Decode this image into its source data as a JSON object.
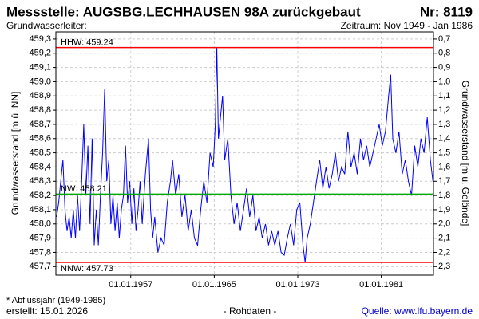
{
  "chart_data": {
    "type": "line",
    "title": "Messstelle: AUGSBG.LECHHAUSEN 98A zurückgebaut",
    "number": "Nr: 8119",
    "subtitle_left": "Grundwasserleiter:",
    "subtitle_right": "Zeitraum: Nov 1949 - Jan 1986",
    "y_label": "Grundwasserstand [m ü. NN]",
    "y2_label": "Grundwasserstand [m u. Gelände]",
    "footnote": "* Abflussjahr (1949-1985)",
    "created": "erstellt:  15.01.2026",
    "data_kind": "- Rohdaten -",
    "source": "Quelle: www.lfu.bayern.de",
    "grid": true,
    "xlim": [
      1949.83,
      1986.0
    ],
    "xticks": [
      {
        "value": 1957,
        "label": "01.01.1957"
      },
      {
        "value": 1965,
        "label": "01.01.1965"
      },
      {
        "value": 1973,
        "label": "01.01.1973"
      },
      {
        "value": 1981,
        "label": "01.01.1981"
      }
    ],
    "ylim": [
      457.64,
      459.35
    ],
    "yticks": [
      {
        "value": 457.7,
        "label": "457,7"
      },
      {
        "value": 457.8,
        "label": "457,8"
      },
      {
        "value": 457.9,
        "label": "457,9"
      },
      {
        "value": 458.0,
        "label": "458,0"
      },
      {
        "value": 458.1,
        "label": "458,1"
      },
      {
        "value": 458.2,
        "label": "458,2"
      },
      {
        "value": 458.3,
        "label": "458,3"
      },
      {
        "value": 458.4,
        "label": "458,4"
      },
      {
        "value": 458.5,
        "label": "458,5"
      },
      {
        "value": 458.6,
        "label": "458,6"
      },
      {
        "value": 458.7,
        "label": "458,7"
      },
      {
        "value": 458.8,
        "label": "458,8"
      },
      {
        "value": 458.9,
        "label": "458,9"
      },
      {
        "value": 459.0,
        "label": "459,0"
      },
      {
        "value": 459.1,
        "label": "459,1"
      },
      {
        "value": 459.2,
        "label": "459,2"
      },
      {
        "value": 459.3,
        "label": "459,3"
      }
    ],
    "y2lim": [
      2.36,
      0.65
    ],
    "y2ticks": [
      {
        "value": 0.7,
        "label": "0,7"
      },
      {
        "value": 0.8,
        "label": "0,8"
      },
      {
        "value": 0.9,
        "label": "0,9"
      },
      {
        "value": 1.0,
        "label": "1,0"
      },
      {
        "value": 1.1,
        "label": "1,1"
      },
      {
        "value": 1.2,
        "label": "1,2"
      },
      {
        "value": 1.3,
        "label": "1,3"
      },
      {
        "value": 1.4,
        "label": "1,4"
      },
      {
        "value": 1.5,
        "label": "1,5"
      },
      {
        "value": 1.6,
        "label": "1,6"
      },
      {
        "value": 1.7,
        "label": "1,7"
      },
      {
        "value": 1.8,
        "label": "1,8"
      },
      {
        "value": 1.9,
        "label": "1,9"
      },
      {
        "value": 2.0,
        "label": "2,0"
      },
      {
        "value": 2.1,
        "label": "2,1"
      },
      {
        "value": 2.2,
        "label": "2,2"
      },
      {
        "value": 2.3,
        "label": "2,3"
      }
    ],
    "reference_lines": [
      {
        "label": "HHW: 459.24",
        "value": 459.24,
        "color": "#ff0000"
      },
      {
        "label": "NW: 458.21",
        "value": 458.21,
        "color": "#00aa00"
      },
      {
        "label": "NNW: 457.73",
        "value": 457.73,
        "color": "#ff0000"
      }
    ],
    "color": "#0000ff",
    "x": [
      1949.9,
      1950.1,
      1950.3,
      1950.5,
      1950.7,
      1950.9,
      1951.1,
      1951.3,
      1951.5,
      1951.7,
      1951.9,
      1952.1,
      1952.3,
      1952.5,
      1952.7,
      1952.9,
      1953.1,
      1953.3,
      1953.5,
      1953.7,
      1953.9,
      1954.1,
      1954.3,
      1954.5,
      1954.7,
      1954.9,
      1955.1,
      1955.3,
      1955.5,
      1955.7,
      1955.9,
      1956.1,
      1956.3,
      1956.5,
      1956.7,
      1956.9,
      1957.1,
      1957.3,
      1957.5,
      1957.7,
      1957.9,
      1958.1,
      1958.4,
      1958.7,
      1958.9,
      1959.1,
      1959.3,
      1959.6,
      1959.9,
      1960.2,
      1960.5,
      1960.8,
      1961.0,
      1961.3,
      1961.6,
      1961.9,
      1962.2,
      1962.5,
      1962.8,
      1963.1,
      1963.4,
      1963.7,
      1964.0,
      1964.3,
      1964.6,
      1964.9,
      1965.1,
      1965.25,
      1965.4,
      1965.6,
      1965.8,
      1966.0,
      1966.3,
      1966.6,
      1966.9,
      1967.2,
      1967.5,
      1967.8,
      1968.1,
      1968.4,
      1968.7,
      1969.0,
      1969.3,
      1969.6,
      1969.9,
      1970.2,
      1970.5,
      1970.8,
      1971.1,
      1971.4,
      1971.7,
      1972.0,
      1972.3,
      1972.6,
      1972.9,
      1973.2,
      1973.5,
      1973.7,
      1973.9,
      1974.2,
      1974.5,
      1974.8,
      1975.1,
      1975.4,
      1975.7,
      1976.0,
      1976.3,
      1976.6,
      1976.9,
      1977.2,
      1977.5,
      1977.8,
      1978.1,
      1978.4,
      1978.7,
      1979.0,
      1979.3,
      1979.6,
      1979.9,
      1980.2,
      1980.5,
      1980.8,
      1981.1,
      1981.4,
      1981.7,
      1981.9,
      1982.1,
      1982.4,
      1982.7,
      1983.0,
      1983.3,
      1983.6,
      1983.9,
      1984.2,
      1984.5,
      1984.8,
      1985.1,
      1985.4,
      1985.7,
      1985.95
    ],
    "values": [
      458.05,
      458.15,
      458.3,
      458.45,
      458.1,
      457.95,
      458.05,
      457.9,
      458.1,
      457.9,
      458.2,
      457.95,
      458.3,
      458.7,
      458.2,
      458.55,
      458.0,
      458.6,
      457.85,
      458.1,
      457.85,
      458.2,
      458.5,
      458.95,
      458.3,
      458.45,
      458.0,
      458.2,
      457.95,
      458.15,
      457.9,
      458.1,
      458.2,
      458.55,
      458.15,
      458.3,
      458.0,
      458.25,
      457.95,
      458.1,
      458.3,
      458.0,
      458.35,
      458.6,
      458.1,
      457.9,
      458.05,
      457.8,
      457.9,
      457.85,
      458.15,
      458.3,
      458.45,
      458.2,
      458.35,
      458.05,
      458.2,
      457.95,
      458.1,
      457.9,
      457.85,
      458.1,
      458.3,
      458.15,
      458.5,
      458.4,
      458.7,
      459.24,
      458.6,
      458.75,
      458.9,
      458.45,
      458.6,
      458.2,
      458.0,
      458.15,
      457.95,
      458.1,
      458.25,
      458.05,
      458.2,
      457.95,
      458.05,
      457.9,
      458.0,
      457.85,
      457.95,
      457.85,
      457.95,
      457.8,
      457.78,
      457.9,
      458.0,
      457.85,
      458.1,
      458.15,
      457.85,
      457.73,
      457.9,
      458.0,
      458.15,
      458.3,
      458.45,
      458.25,
      458.4,
      458.25,
      458.35,
      458.5,
      458.3,
      458.4,
      458.35,
      458.65,
      458.4,
      458.5,
      458.35,
      458.6,
      458.45,
      458.55,
      458.4,
      458.5,
      458.6,
      458.7,
      458.55,
      458.65,
      458.9,
      459.05,
      458.6,
      458.5,
      458.65,
      458.35,
      458.45,
      458.3,
      458.2,
      458.55,
      458.4,
      458.6,
      458.5,
      458.75,
      458.45,
      458.3
    ]
  }
}
